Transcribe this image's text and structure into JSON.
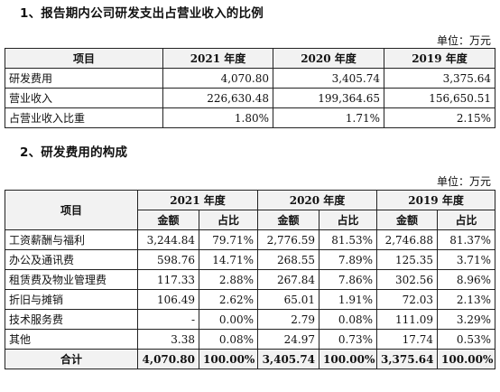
{
  "section1": {
    "heading": "1、报告期内公司研发支出占营业收入的比例",
    "unit": "单位：万元",
    "headers": [
      "项目",
      "2021 年度",
      "2020 年度",
      "2019 年度"
    ],
    "rows": [
      {
        "label": "研发费用",
        "v2021": "4,070.80",
        "v2020": "3,405.74",
        "v2019": "3,375.64"
      },
      {
        "label": "营业收入",
        "v2021": "226,630.48",
        "v2020": "199,364.65",
        "v2019": "156,650.51"
      },
      {
        "label": "占营业收入比重",
        "v2021": "1.80%",
        "v2020": "1.71%",
        "v2019": "2.15%"
      }
    ]
  },
  "section2": {
    "heading": "2、研发费用的构成",
    "unit": "单位：万元",
    "header_item": "项目",
    "years": [
      "2021 年度",
      "2020 年度",
      "2019 年度"
    ],
    "sub_amount": "金额",
    "sub_ratio": "占比",
    "rows": [
      {
        "label": "工资薪酬与福利",
        "a2021": "3,244.84",
        "r2021": "79.71%",
        "a2020": "2,776.59",
        "r2020": "81.53%",
        "a2019": "2,746.88",
        "r2019": "81.37%"
      },
      {
        "label": "办公及通讯费",
        "a2021": "598.76",
        "r2021": "14.71%",
        "a2020": "268.55",
        "r2020": "7.89%",
        "a2019": "125.35",
        "r2019": "3.71%"
      },
      {
        "label": "租赁费及物业管理费",
        "a2021": "117.33",
        "r2021": "2.88%",
        "a2020": "267.84",
        "r2020": "7.86%",
        "a2019": "302.56",
        "r2019": "8.96%"
      },
      {
        "label": "折旧与摊销",
        "a2021": "106.49",
        "r2021": "2.62%",
        "a2020": "65.01",
        "r2020": "1.91%",
        "a2019": "72.03",
        "r2019": "2.13%"
      },
      {
        "label": "技术服务费",
        "a2021": "-",
        "r2021": "0.00%",
        "a2020": "2.79",
        "r2020": "0.08%",
        "a2019": "111.09",
        "r2019": "3.29%"
      },
      {
        "label": "其他",
        "a2021": "3.38",
        "r2021": "0.08%",
        "a2020": "24.97",
        "r2020": "0.73%",
        "a2019": "17.74",
        "r2019": "0.53%"
      }
    ],
    "total": {
      "label": "合计",
      "a2021": "4,070.80",
      "r2021": "100.00%",
      "a2020": "3,405.74",
      "r2020": "100.00%",
      "a2019": "3,375.64",
      "r2019": "100.00%"
    }
  }
}
